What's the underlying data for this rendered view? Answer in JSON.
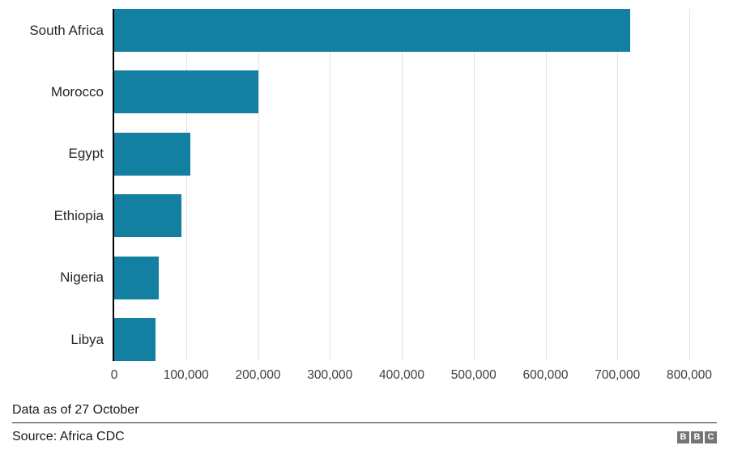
{
  "chart_data": {
    "type": "bar",
    "orientation": "horizontal",
    "title": "",
    "xlabel": "",
    "ylabel": "",
    "categories": [
      "South Africa",
      "Morocco",
      "Egypt",
      "Ethiopia",
      "Nigeria",
      "Libya"
    ],
    "values": [
      718000,
      200000,
      106000,
      94000,
      62000,
      57000
    ],
    "xlim": [
      0,
      800000
    ],
    "x_tick_values": [
      0,
      100000,
      200000,
      300000,
      400000,
      500000,
      600000,
      700000,
      800000
    ],
    "x_tick_labels": [
      "0",
      "100,000",
      "200,000",
      "300,000",
      "400,000",
      "500,000",
      "600,000",
      "700,000",
      "800,000"
    ],
    "grid": true,
    "bar_color": "#1380A1",
    "gridline_color": "#e2e2e2",
    "axis_line_color": "#000000"
  },
  "footer": {
    "note": "Data as of 27 October",
    "source": "Source: Africa CDC"
  },
  "logo": {
    "blocks": [
      "B",
      "B",
      "C"
    ],
    "block_color": "#757575"
  }
}
